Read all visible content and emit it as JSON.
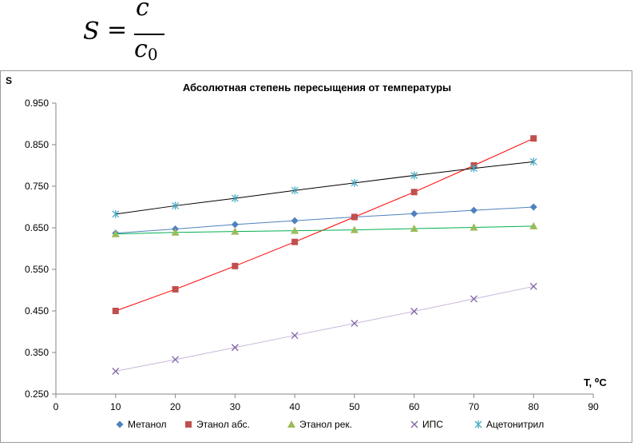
{
  "formula": {
    "lhs": "S",
    "equals": "=",
    "numerator": "c",
    "denominator_base": "c",
    "denominator_sub": "0"
  },
  "chart_data": {
    "type": "line",
    "title": "Абсолютная степень пересыщения от температуры",
    "xlabel": "T, ⁰C",
    "ylabel": "S",
    "xlim": [
      0,
      90
    ],
    "ylim": [
      0.25,
      0.95
    ],
    "x_ticks": [
      0,
      10,
      20,
      30,
      40,
      50,
      60,
      70,
      80,
      90
    ],
    "y_ticks": [
      0.25,
      0.35,
      0.45,
      0.55,
      0.65,
      0.75,
      0.85,
      0.95
    ],
    "y_tick_labels": [
      "0.250",
      "0.350",
      "0.450",
      "0.550",
      "0.650",
      "0.750",
      "0.850",
      "0.950"
    ],
    "x_tick_labels": [
      "0",
      "10",
      "20",
      "30",
      "40",
      "50",
      "60",
      "70",
      "80",
      "90"
    ],
    "grid": false,
    "legend_position": "bottom",
    "x": [
      10,
      20,
      30,
      40,
      50,
      60,
      70,
      80
    ],
    "series": [
      {
        "name": "Метанол",
        "marker": "diamond",
        "color": "#4f81bd",
        "line_color": "#4f81bd",
        "values": [
          0.637,
          0.647,
          0.658,
          0.667,
          0.676,
          0.684,
          0.692,
          0.7
        ]
      },
      {
        "name": "Этанол абс.",
        "marker": "square",
        "color": "#c0504d",
        "line_color": "#ff0000",
        "values": [
          0.45,
          0.502,
          0.558,
          0.616,
          0.676,
          0.736,
          0.8,
          0.865
        ]
      },
      {
        "name": "Этанол рек.",
        "marker": "triangle",
        "color": "#9bbb59",
        "line_color": "#00b050",
        "values": [
          0.635,
          0.639,
          0.641,
          0.643,
          0.645,
          0.648,
          0.651,
          0.654
        ]
      },
      {
        "name": "ИПС",
        "marker": "x",
        "color": "#8064a2",
        "line_color": "#c9b8dc",
        "values": [
          0.305,
          0.333,
          0.362,
          0.391,
          0.42,
          0.449,
          0.479,
          0.509
        ]
      },
      {
        "name": "Ацетонитрил",
        "marker": "star",
        "color": "#4bacc6",
        "line_color": "#000000",
        "values": [
          0.683,
          0.703,
          0.721,
          0.74,
          0.758,
          0.776,
          0.793,
          0.809
        ]
      }
    ]
  }
}
